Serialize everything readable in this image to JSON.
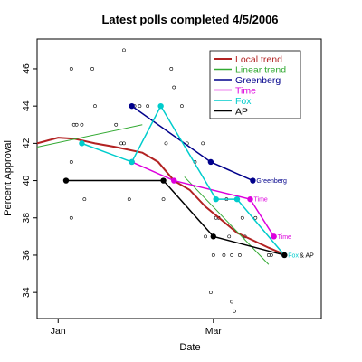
{
  "chart_data": {
    "type": "scatter",
    "title": "Latest polls completed  4/5/2006",
    "xlabel": "Date",
    "ylabel": "Percent Approval",
    "xlim": [
      -8,
      100
    ],
    "ylim": [
      32.6,
      47.6
    ],
    "x_ticks": [
      {
        "value": 0,
        "label": "Jan"
      },
      {
        "value": 59,
        "label": "Mar"
      }
    ],
    "y_ticks": [
      34,
      36,
      38,
      40,
      42,
      44,
      46
    ],
    "legend_position": "top-right",
    "polls_x": [
      5,
      6,
      7,
      5,
      5,
      9,
      10,
      13,
      14,
      22,
      24,
      25,
      25,
      27,
      29,
      31,
      34,
      40,
      41,
      43,
      44,
      47,
      49,
      52,
      55,
      56,
      58,
      59,
      60,
      61,
      63,
      64,
      65,
      66,
      66,
      67,
      69,
      70,
      71,
      75,
      80,
      81
    ],
    "polls_y": [
      46,
      43,
      43,
      41,
      38,
      43,
      39,
      46,
      44,
      43,
      42,
      42,
      47,
      39,
      44,
      44,
      44,
      39,
      42,
      46,
      45,
      44,
      42,
      41,
      42,
      37,
      34,
      36,
      38,
      38,
      36,
      39,
      37,
      36,
      33.5,
      33,
      36,
      38,
      37,
      38,
      36,
      36
    ],
    "series": [
      {
        "name": "Local trend",
        "color": "#b22222",
        "width": 2,
        "x": [
          -8,
          0,
          6,
          14,
          22,
          32,
          38,
          44,
          50,
          56,
          62,
          68,
          74,
          80,
          85
        ],
        "y": [
          42.0,
          42.3,
          42.25,
          42.0,
          41.8,
          41.5,
          41.0,
          40.0,
          39.5,
          38.6,
          37.9,
          37.2,
          36.8,
          36.4,
          36.1
        ]
      },
      {
        "name": "Linear trend",
        "color": "#33aa33",
        "width": 1,
        "x": [
          -8,
          32
        ],
        "y": [
          41.8,
          43.0
        ],
        "x2": [
          48,
          80
        ],
        "y2": [
          40.2,
          35.5
        ]
      },
      {
        "name": "Greenberg",
        "color": "#00008b",
        "width": 1.5,
        "marker": true,
        "x": [
          28,
          58,
          74
        ],
        "y": [
          44,
          41,
          40
        ],
        "label": "Greenberg"
      },
      {
        "name": "Time",
        "color": "#dd00dd",
        "width": 1.5,
        "marker": true,
        "x": [
          28,
          44,
          73,
          82
        ],
        "y": [
          41,
          40,
          39,
          37
        ],
        "label": "Time"
      },
      {
        "name": "Fox",
        "color": "#00cccc",
        "width": 1.5,
        "marker": true,
        "x": [
          9,
          28,
          39,
          60,
          68,
          86
        ],
        "y": [
          42,
          41,
          44,
          39,
          39,
          36
        ]
      },
      {
        "name": "AP",
        "color": "#000000",
        "width": 1.5,
        "marker": true,
        "x": [
          3,
          40,
          59,
          86
        ],
        "y": [
          40,
          40,
          37,
          36
        ]
      }
    ],
    "annotations": [
      {
        "text": "Greenberg",
        "x": 74,
        "y": 40,
        "color": "#00008b"
      },
      {
        "text": "Time",
        "x": 73,
        "y": 39,
        "color": "#dd00dd"
      },
      {
        "text": "Time",
        "x": 82,
        "y": 37,
        "color": "#dd00dd"
      },
      {
        "text": "Fox",
        "x": 86,
        "y": 36,
        "color": "#00cccc"
      },
      {
        "text": "& AP",
        "x": 86,
        "y": 36,
        "color": "#000000"
      }
    ]
  }
}
